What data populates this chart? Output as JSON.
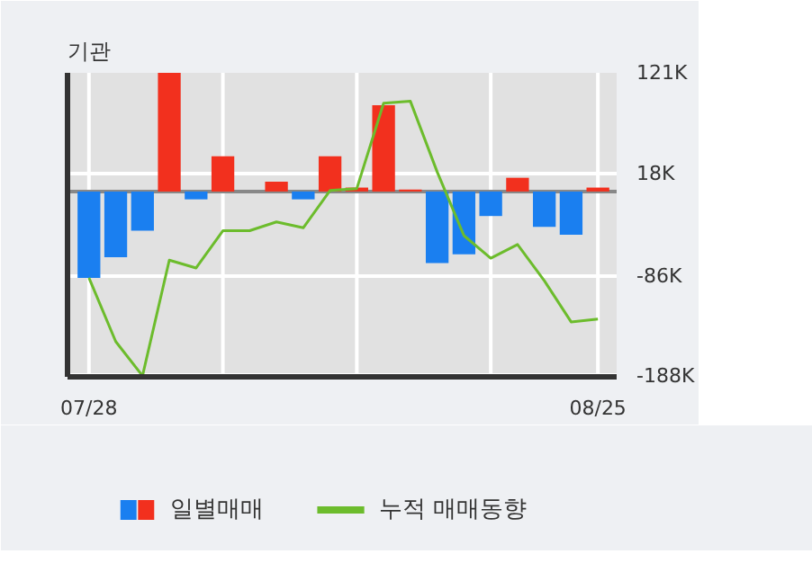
{
  "chart_data": {
    "type": "bar",
    "title": "기관",
    "categories": [
      "07/28",
      null,
      null,
      null,
      null,
      null,
      null,
      null,
      null,
      null,
      null,
      null,
      null,
      null,
      null,
      null,
      null,
      null,
      null,
      "08/25"
    ],
    "series": [
      {
        "name": "일별매매",
        "values": [
          -88,
          -67,
          -40,
          121,
          -8,
          36,
          0,
          10,
          -8,
          36,
          4,
          88,
          2,
          -73,
          -64,
          -25,
          14,
          -36,
          -44,
          4
        ],
        "colors": [
          "#1a7ff0",
          "#1a7ff0",
          "#1a7ff0",
          "#f2301e",
          "#1a7ff0",
          "#f2301e",
          "#f2301e",
          "#f2301e",
          "#1a7ff0",
          "#f2301e",
          "#f2301e",
          "#f2301e",
          "#f2301e",
          "#1a7ff0",
          "#1a7ff0",
          "#1a7ff0",
          "#f2301e",
          "#1a7ff0",
          "#1a7ff0",
          "#f2301e"
        ]
      },
      {
        "name": "누적 매매동향",
        "type": "line",
        "color": "#6cbc2c",
        "values": [
          -88,
          -153,
          -188,
          -70,
          -78,
          -40,
          -40,
          -31,
          -37,
          1,
          3,
          90,
          92,
          20,
          -45,
          -68,
          -54,
          -91,
          -133,
          -130
        ]
      }
    ],
    "ylim": [
      -189,
      121
    ],
    "yticks": [
      {
        "value": 121,
        "label": "121K"
      },
      {
        "value": 18,
        "label": "18K"
      },
      {
        "value": -86,
        "label": "-86K"
      },
      {
        "value": -188,
        "label": "-188K"
      }
    ],
    "grid": true,
    "legend": "bottom"
  }
}
